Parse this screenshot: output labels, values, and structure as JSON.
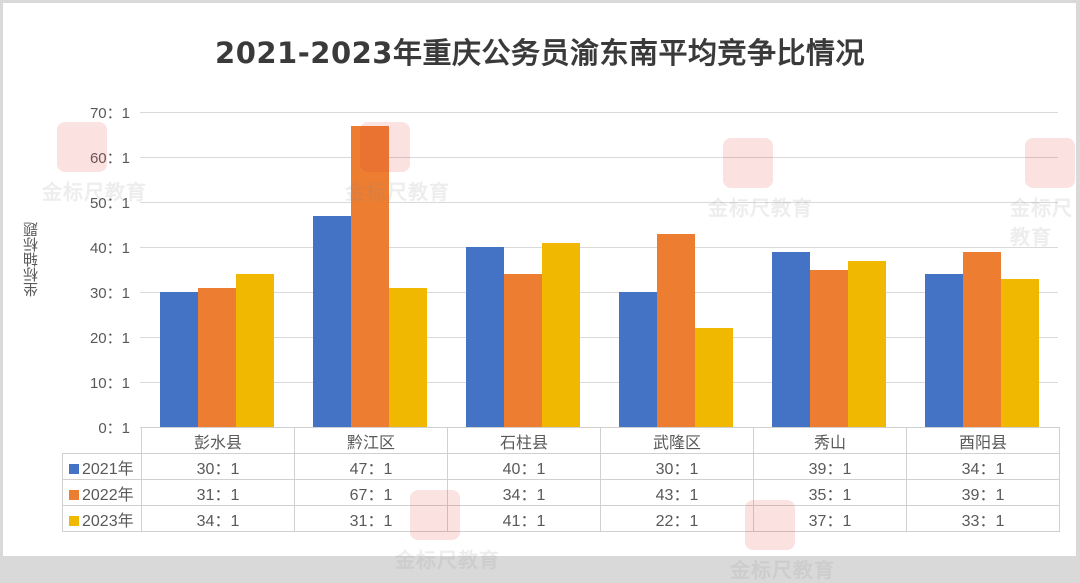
{
  "chart_data": {
    "type": "bar",
    "title": "2021-2023年重庆公务员渝东南平均竞争比情况",
    "xlabel": "",
    "ylabel": "坐标轴标题",
    "ylim": [
      0,
      70
    ],
    "yticks": [
      "0：1",
      "10：1",
      "20：1",
      "30：1",
      "40：1",
      "50：1",
      "60：1",
      "70：1"
    ],
    "grid": true,
    "legend_position": "data-table",
    "categories": [
      "彭水县",
      "黔江区",
      "石柱县",
      "武隆区",
      "秀山",
      "酉阳县"
    ],
    "series": [
      {
        "name": "2021年",
        "color": "#4472c4",
        "values": [
          30,
          47,
          40,
          30,
          39,
          34
        ],
        "labels": [
          "30：1",
          "47：1",
          "40：1",
          "30：1",
          "39：1",
          "34：1"
        ]
      },
      {
        "name": "2022年",
        "color": "#ed7d31",
        "values": [
          31,
          67,
          34,
          43,
          35,
          39
        ],
        "labels": [
          "31：1",
          "67：1",
          "34：1",
          "43：1",
          "35：1",
          "39：1"
        ]
      },
      {
        "name": "2023年",
        "color": "#f0b800",
        "values": [
          34,
          31,
          41,
          22,
          37,
          33
        ],
        "labels": [
          "34：1",
          "31：1",
          "41：1",
          "22：1",
          "37：1",
          "33：1"
        ]
      }
    ]
  },
  "watermark": {
    "text": "金标尺教育"
  }
}
